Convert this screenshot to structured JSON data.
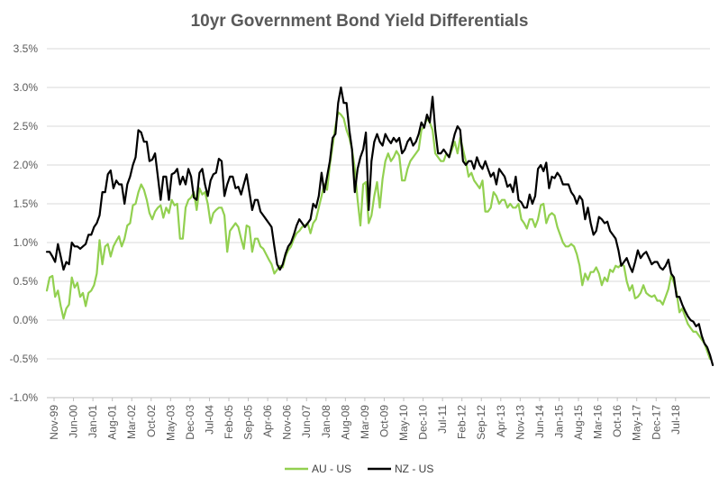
{
  "chart_data": {
    "type": "line",
    "title": "10yr Government Bond Yield Differentials",
    "xlabel": "",
    "ylabel": "",
    "ylim": [
      -1.0,
      3.5
    ],
    "yticks": [
      "-1.0%",
      "-0.5%",
      "0.0%",
      "0.5%",
      "1.0%",
      "1.5%",
      "2.0%",
      "2.5%",
      "3.0%",
      "3.5%"
    ],
    "xticks": [
      "Nov-99",
      "Jun-00",
      "Jan-01",
      "Aug-01",
      "Mar-02",
      "Oct-02",
      "May-03",
      "Dec-03",
      "Jul-04",
      "Feb-05",
      "Sep-05",
      "Apr-06",
      "Nov-06",
      "Jun-07",
      "Jan-08",
      "Aug-08",
      "Mar-09",
      "Oct-09",
      "May-10",
      "Dec-10",
      "Jul-11",
      "Feb-12",
      "Sep-12",
      "Apr-13",
      "Nov-13",
      "Jun-14",
      "Jan-15",
      "Aug-15",
      "Mar-16",
      "Oct-16",
      "May-17",
      "Dec-17",
      "Jul-18"
    ],
    "grid": true,
    "legend_position": "bottom",
    "series": [
      {
        "name": "AU - US",
        "color": "#92d050",
        "values": [
          0.38,
          0.55,
          0.57,
          0.3,
          0.38,
          0.18,
          0.02,
          0.15,
          0.2,
          0.55,
          0.42,
          0.48,
          0.3,
          0.35,
          0.18,
          0.35,
          0.38,
          0.45,
          0.6,
          1.03,
          0.72,
          0.95,
          0.98,
          0.82,
          0.95,
          1.02,
          1.08,
          0.95,
          1.05,
          1.22,
          1.25,
          1.48,
          1.5,
          1.65,
          1.75,
          1.68,
          1.55,
          1.38,
          1.3,
          1.4,
          1.45,
          1.48,
          1.32,
          1.45,
          1.38,
          1.55,
          1.48,
          1.5,
          1.05,
          1.05,
          1.45,
          1.55,
          1.58,
          1.65,
          1.42,
          1.7,
          1.62,
          1.65,
          1.5,
          1.25,
          1.38,
          1.42,
          1.45,
          1.45,
          1.35,
          0.88,
          1.15,
          1.2,
          1.25,
          1.2,
          1.05,
          0.92,
          1.22,
          1.2,
          0.88,
          1.05,
          1.05,
          0.95,
          0.92,
          0.85,
          0.78,
          0.72,
          0.6,
          0.65,
          0.7,
          0.68,
          0.82,
          0.9,
          0.95,
          1.05,
          1.12,
          1.15,
          1.2,
          1.22,
          1.25,
          1.12,
          1.25,
          1.3,
          1.45,
          1.6,
          1.75,
          1.68,
          2.0,
          2.25,
          2.5,
          2.68,
          2.65,
          2.6,
          2.45,
          2.35,
          2.2,
          1.95,
          1.55,
          1.22,
          1.75,
          1.78,
          1.25,
          1.35,
          1.6,
          1.78,
          1.45,
          1.82,
          2.05,
          2.15,
          2.05,
          2.1,
          2.18,
          2.12,
          1.8,
          1.8,
          1.95,
          2.05,
          2.1,
          2.15,
          2.2,
          2.45,
          2.5,
          2.6,
          2.55,
          2.45,
          2.15,
          2.1,
          2.05,
          2.05,
          2.15,
          2.1,
          2.2,
          2.3,
          2.15,
          2.35,
          2.2,
          2.05,
          1.85,
          1.9,
          1.8,
          1.75,
          1.7,
          1.8,
          1.4,
          1.4,
          1.45,
          1.65,
          1.6,
          1.5,
          1.55,
          1.55,
          1.45,
          1.5,
          1.45,
          1.45,
          1.5,
          1.3,
          1.25,
          1.18,
          1.3,
          1.3,
          1.2,
          1.3,
          1.48,
          1.5,
          1.25,
          1.35,
          1.38,
          1.35,
          1.2,
          1.1,
          1.0,
          0.95,
          0.95,
          0.98,
          0.95,
          0.85,
          0.7,
          0.45,
          0.6,
          0.52,
          0.62,
          0.62,
          0.68,
          0.6,
          0.45,
          0.55,
          0.5,
          0.65,
          0.62,
          0.7,
          0.68,
          0.72,
          0.7,
          0.5,
          0.38,
          0.45,
          0.28,
          0.3,
          0.35,
          0.45,
          0.35,
          0.32,
          0.3,
          0.32,
          0.25,
          0.25,
          0.2,
          0.3,
          0.4,
          0.58,
          0.48,
          0.35,
          0.1,
          0.15,
          0.05,
          -0.05,
          -0.1,
          -0.15,
          -0.15,
          -0.2,
          -0.25,
          -0.3,
          -0.4,
          -0.5
        ]
      },
      {
        "name": "NZ - US",
        "color": "#000000",
        "values": [
          0.88,
          0.88,
          0.82,
          0.75,
          0.98,
          0.82,
          0.65,
          0.75,
          0.72,
          1.0,
          0.95,
          0.95,
          0.92,
          0.95,
          0.98,
          1.1,
          1.1,
          1.2,
          1.25,
          1.35,
          1.65,
          1.65,
          1.88,
          1.93,
          1.7,
          1.8,
          1.75,
          1.75,
          1.5,
          1.75,
          1.85,
          2.0,
          2.1,
          2.45,
          2.42,
          2.3,
          2.3,
          2.05,
          2.07,
          2.15,
          1.85,
          1.55,
          1.85,
          1.85,
          1.55,
          1.88,
          1.9,
          1.95,
          1.75,
          1.85,
          1.75,
          1.95,
          1.85,
          1.58,
          1.55,
          1.9,
          1.95,
          1.75,
          1.6,
          1.8,
          1.88,
          1.9,
          2.08,
          2.05,
          1.6,
          1.75,
          1.85,
          1.85,
          1.7,
          1.72,
          1.62,
          1.75,
          1.88,
          1.65,
          1.42,
          1.55,
          1.55,
          1.4,
          1.35,
          1.3,
          1.25,
          1.2,
          0.95,
          0.72,
          0.65,
          0.72,
          0.85,
          0.95,
          1.0,
          1.1,
          1.22,
          1.3,
          1.25,
          1.2,
          1.25,
          1.3,
          1.5,
          1.45,
          1.6,
          1.9,
          1.65,
          1.85,
          2.05,
          2.35,
          2.4,
          2.8,
          3.0,
          2.8,
          2.8,
          2.45,
          2.2,
          1.65,
          1.95,
          2.1,
          2.2,
          2.42,
          1.42,
          2.05,
          2.3,
          2.4,
          2.3,
          2.25,
          2.4,
          2.33,
          2.28,
          2.35,
          2.3,
          2.35,
          2.15,
          2.2,
          2.3,
          2.35,
          2.25,
          2.3,
          2.4,
          2.55,
          2.48,
          2.65,
          2.55,
          2.88,
          2.45,
          2.15,
          2.15,
          2.2,
          2.15,
          2.1,
          2.25,
          2.4,
          2.5,
          2.45,
          2.05,
          2.0,
          2.05,
          2.05,
          1.95,
          2.1,
          2.0,
          1.95,
          2.05,
          1.95,
          1.85,
          1.9,
          1.75,
          1.95,
          1.9,
          1.85,
          1.72,
          1.75,
          1.65,
          1.85,
          1.55,
          1.52,
          1.45,
          1.45,
          1.62,
          1.5,
          1.6,
          1.95,
          2.0,
          1.92,
          2.03,
          1.7,
          1.85,
          1.83,
          1.9,
          1.85,
          1.75,
          1.75,
          1.75,
          1.65,
          1.6,
          1.5,
          1.6,
          1.55,
          1.3,
          1.45,
          1.25,
          1.1,
          1.15,
          1.33,
          1.3,
          1.25,
          1.27,
          1.15,
          1.1,
          1.05,
          0.9,
          0.7,
          0.75,
          0.8,
          0.7,
          0.62,
          0.75,
          0.9,
          0.8,
          0.85,
          0.88,
          0.8,
          0.72,
          0.75,
          0.75,
          0.68,
          0.65,
          0.7,
          0.78,
          0.6,
          0.55,
          0.3,
          0.3,
          0.2,
          0.12,
          0.05,
          0.0,
          -0.02,
          -0.08,
          -0.05,
          -0.2,
          -0.3,
          -0.35,
          -0.45,
          -0.58
        ]
      }
    ]
  }
}
